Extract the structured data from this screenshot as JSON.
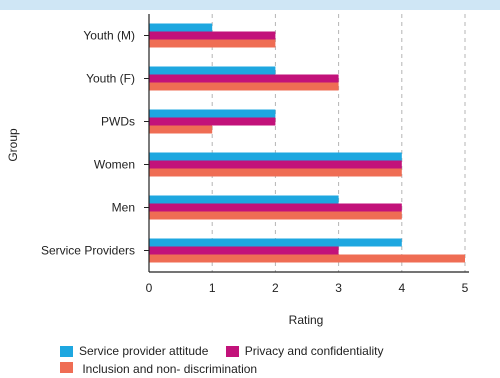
{
  "colors": {
    "band": "#cfe6f5"
  },
  "chart_data": {
    "type": "bar",
    "orientation": "horizontal",
    "categories": [
      "Youth (M)",
      "Youth (F)",
      "PWDs",
      "Women",
      "Men",
      "Service Providers"
    ],
    "series": [
      {
        "name": "Service provider attitude",
        "color": "#1ea7e0",
        "values": [
          1,
          2,
          2,
          4,
          3,
          4
        ]
      },
      {
        "name": "Privacy and confidentiality",
        "color": "#c2127a",
        "values": [
          2,
          3,
          2,
          4,
          4,
          3
        ]
      },
      {
        "name": "Inclusion and non- discrimination",
        "color": "#ef6d54",
        "values": [
          2,
          3,
          1,
          4,
          4,
          5
        ]
      }
    ],
    "xlabel": "Rating",
    "ylabel": "Group",
    "xlim": [
      0,
      5
    ],
    "xticks": [
      "0",
      "1",
      "2",
      "3",
      "4",
      "5"
    ],
    "grid": "vertical dashed",
    "legend_position": "bottom"
  }
}
